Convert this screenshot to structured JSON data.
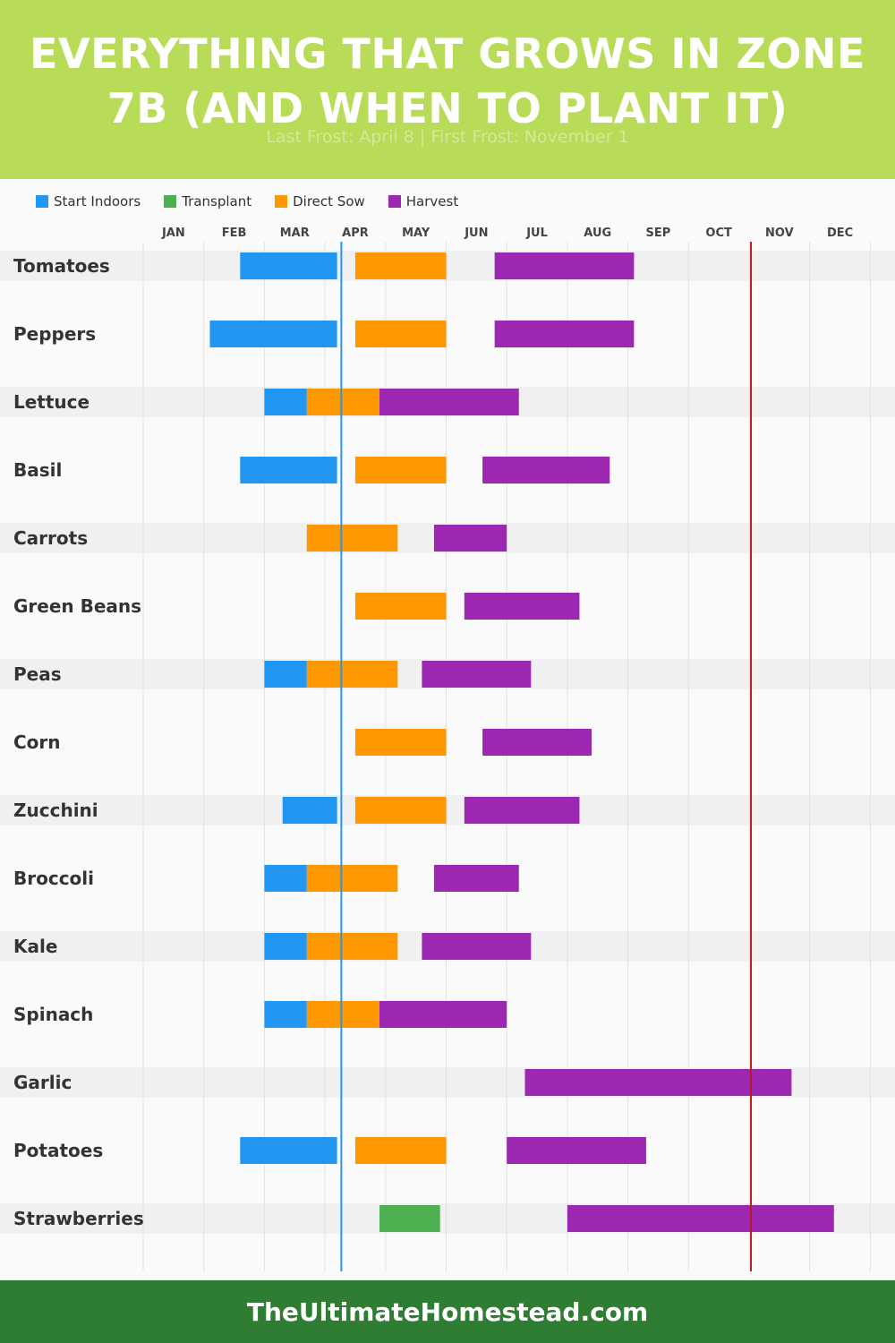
{
  "header": {
    "title": "EVERYTHING THAT GROWS IN ZONE 7B (AND WHEN TO PLANT IT)",
    "subtitle": "Last Frost: April 8 | First Frost: November 1",
    "background": "#b8dc58"
  },
  "legend": [
    {
      "label": "Start Indoors",
      "color": "#2196f3"
    },
    {
      "label": "Transplant",
      "color": "#4caf50"
    },
    {
      "label": "Direct Sow",
      "color": "#ff9800"
    },
    {
      "label": "Harvest",
      "color": "#9c27b0"
    }
  ],
  "chart_data": {
    "type": "gantt",
    "months": [
      "JAN",
      "FEB",
      "MAR",
      "APR",
      "MAY",
      "JUN",
      "JUL",
      "AUG",
      "SEP",
      "OCT",
      "NOV",
      "DEC"
    ],
    "x_unit": "month (0 = start of January, 12 = end of December)",
    "xlim": [
      0,
      12
    ],
    "grid": true,
    "markers": [
      {
        "label": "Last Frost: April 8",
        "month": 3.27,
        "color": "#2196f3"
      },
      {
        "label": "First Frost: November 1",
        "month": 10.03,
        "color": "#b71c1c"
      }
    ],
    "crops": [
      {
        "name": "Tomatoes",
        "bars": [
          {
            "phase": "Start Indoors",
            "start": 1.6,
            "end": 3.2
          },
          {
            "phase": "Direct Sow",
            "start": 3.5,
            "end": 5.0
          },
          {
            "phase": "Harvest",
            "start": 5.8,
            "end": 8.1
          }
        ]
      },
      {
        "name": "Peppers",
        "bars": [
          {
            "phase": "Start Indoors",
            "start": 1.1,
            "end": 3.2
          },
          {
            "phase": "Direct Sow",
            "start": 3.5,
            "end": 5.0
          },
          {
            "phase": "Harvest",
            "start": 5.8,
            "end": 8.1
          }
        ]
      },
      {
        "name": "Lettuce",
        "bars": [
          {
            "phase": "Start Indoors",
            "start": 2.0,
            "end": 2.7
          },
          {
            "phase": "Direct Sow",
            "start": 2.7,
            "end": 3.9
          },
          {
            "phase": "Harvest",
            "start": 3.9,
            "end": 6.2
          }
        ]
      },
      {
        "name": "Basil",
        "bars": [
          {
            "phase": "Start Indoors",
            "start": 1.6,
            "end": 3.2
          },
          {
            "phase": "Direct Sow",
            "start": 3.5,
            "end": 5.0
          },
          {
            "phase": "Harvest",
            "start": 5.6,
            "end": 7.7
          }
        ]
      },
      {
        "name": "Carrots",
        "bars": [
          {
            "phase": "Direct Sow",
            "start": 2.7,
            "end": 4.2
          },
          {
            "phase": "Harvest",
            "start": 4.8,
            "end": 6.0
          }
        ]
      },
      {
        "name": "Green Beans",
        "bars": [
          {
            "phase": "Direct Sow",
            "start": 3.5,
            "end": 5.0
          },
          {
            "phase": "Harvest",
            "start": 5.3,
            "end": 7.2
          }
        ]
      },
      {
        "name": "Peas",
        "bars": [
          {
            "phase": "Start Indoors",
            "start": 2.0,
            "end": 2.7
          },
          {
            "phase": "Direct Sow",
            "start": 2.7,
            "end": 4.2
          },
          {
            "phase": "Harvest",
            "start": 4.6,
            "end": 6.4
          }
        ]
      },
      {
        "name": "Corn",
        "bars": [
          {
            "phase": "Direct Sow",
            "start": 3.5,
            "end": 5.0
          },
          {
            "phase": "Harvest",
            "start": 5.6,
            "end": 7.4
          }
        ]
      },
      {
        "name": "Zucchini",
        "bars": [
          {
            "phase": "Start Indoors",
            "start": 2.3,
            "end": 3.2
          },
          {
            "phase": "Direct Sow",
            "start": 3.5,
            "end": 5.0
          },
          {
            "phase": "Harvest",
            "start": 5.3,
            "end": 7.2
          }
        ]
      },
      {
        "name": "Broccoli",
        "bars": [
          {
            "phase": "Start Indoors",
            "start": 2.0,
            "end": 2.7
          },
          {
            "phase": "Direct Sow",
            "start": 2.7,
            "end": 4.2
          },
          {
            "phase": "Harvest",
            "start": 4.8,
            "end": 6.2
          }
        ]
      },
      {
        "name": "Kale",
        "bars": [
          {
            "phase": "Start Indoors",
            "start": 2.0,
            "end": 2.7
          },
          {
            "phase": "Direct Sow",
            "start": 2.7,
            "end": 4.2
          },
          {
            "phase": "Harvest",
            "start": 4.6,
            "end": 6.4
          }
        ]
      },
      {
        "name": "Spinach",
        "bars": [
          {
            "phase": "Start Indoors",
            "start": 2.0,
            "end": 2.7
          },
          {
            "phase": "Direct Sow",
            "start": 2.7,
            "end": 3.9
          },
          {
            "phase": "Harvest",
            "start": 3.9,
            "end": 6.0
          }
        ]
      },
      {
        "name": "Garlic",
        "bars": [
          {
            "phase": "Harvest",
            "start": 6.3,
            "end": 10.7
          }
        ]
      },
      {
        "name": "Potatoes",
        "bars": [
          {
            "phase": "Start Indoors",
            "start": 1.6,
            "end": 3.2
          },
          {
            "phase": "Direct Sow",
            "start": 3.5,
            "end": 5.0
          },
          {
            "phase": "Harvest",
            "start": 6.0,
            "end": 8.3
          }
        ]
      },
      {
        "name": "Strawberries",
        "bars": [
          {
            "phase": "Transplant",
            "start": 3.9,
            "end": 4.9
          },
          {
            "phase": "Harvest",
            "start": 7.0,
            "end": 11.4
          }
        ]
      }
    ]
  },
  "footer": {
    "text": "TheUltimateHomestead.com",
    "background": "#2e7d32"
  }
}
